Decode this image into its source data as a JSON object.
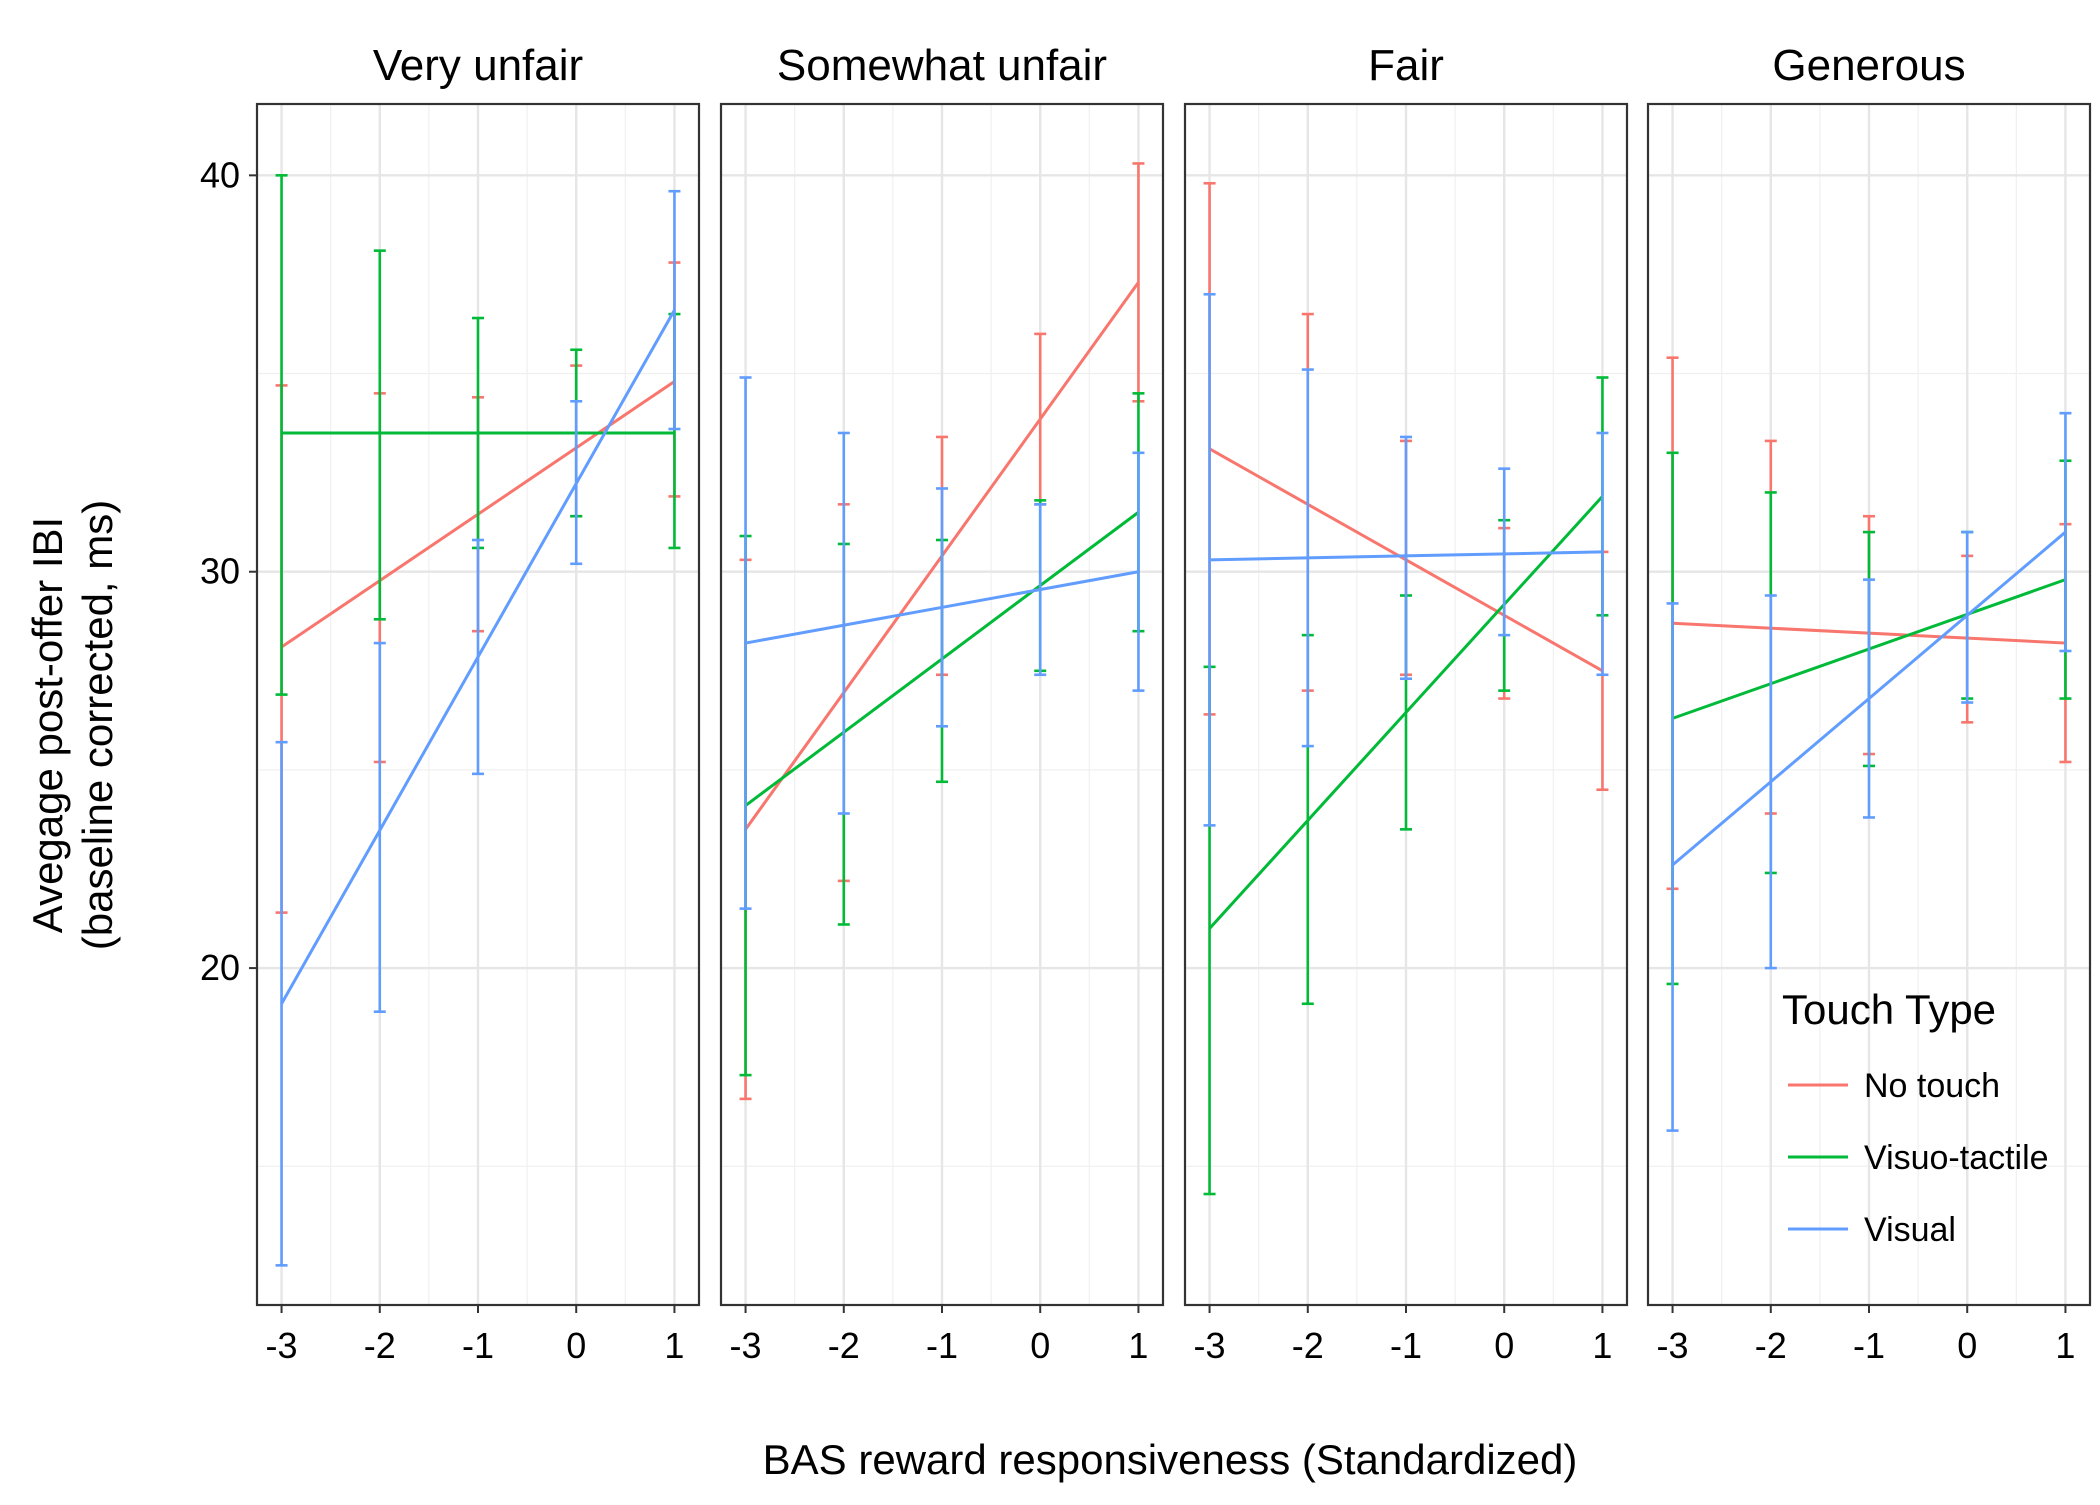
{
  "chart_data": {
    "type": "line",
    "xlabel": "BAS reward responsiveness (Standardized)",
    "ylabel_line1": "Avegage post-offer IBI",
    "ylabel_line2": "(baseline corrected, ms)",
    "x_ticks": [
      -3,
      -2,
      -1,
      0,
      1
    ],
    "x_tick_labels": [
      "-3",
      "-2",
      "-1",
      "0",
      "1"
    ],
    "y_ticks": [
      20,
      30,
      40
    ],
    "y_tick_labels": [
      "20",
      "30",
      "40"
    ],
    "xlim": [
      -3.25,
      1.25
    ],
    "ylim": [
      11.5,
      41.8
    ],
    "grid": true,
    "legend": {
      "title": "Touch Type",
      "placement": "bottom-right",
      "entries": [
        {
          "label": "No touch",
          "color": "#F8766D"
        },
        {
          "label": "Visuo-tactile",
          "color": "#00BA38"
        },
        {
          "label": "Visual",
          "color": "#619CFF"
        }
      ]
    },
    "facets": [
      {
        "label": "Very unfair",
        "series": [
          {
            "name": "No touch",
            "color": "#F8766D",
            "line": [
              [
                -3,
                28.1
              ],
              [
                1,
                34.8
              ]
            ],
            "errorbars": [
              [
                -3,
                21.4,
                34.7
              ],
              [
                -2,
                25.2,
                34.5
              ],
              [
                -1,
                28.5,
                34.4
              ],
              [
                0,
                31.4,
                35.2
              ],
              [
                1,
                31.9,
                37.8
              ]
            ]
          },
          {
            "name": "Visuo-tactile",
            "color": "#00BA38",
            "line": [
              [
                -3,
                33.5
              ],
              [
                1,
                33.5
              ]
            ],
            "errorbars": [
              [
                -3,
                26.9,
                40.0
              ],
              [
                -2,
                28.8,
                38.1
              ],
              [
                -1,
                30.6,
                36.4
              ],
              [
                0,
                31.4,
                35.6
              ],
              [
                1,
                30.6,
                36.5
              ]
            ]
          },
          {
            "name": "Visual",
            "color": "#619CFF",
            "line": [
              [
                -3,
                19.1
              ],
              [
                1,
                36.6
              ]
            ],
            "errorbars": [
              [
                -3,
                12.5,
                25.7
              ],
              [
                -2,
                18.9,
                28.2
              ],
              [
                -1,
                24.9,
                30.8
              ],
              [
                0,
                30.2,
                34.3
              ],
              [
                1,
                33.6,
                39.6
              ]
            ]
          }
        ]
      },
      {
        "label": "Somewhat unfair",
        "series": [
          {
            "name": "No touch",
            "color": "#F8766D",
            "line": [
              [
                -3,
                23.5
              ],
              [
                1,
                37.3
              ]
            ],
            "errorbars": [
              [
                -3,
                16.7,
                30.3
              ],
              [
                -2,
                22.2,
                31.7
              ],
              [
                -1,
                27.4,
                33.4
              ],
              [
                0,
                31.7,
                36.0
              ],
              [
                1,
                34.3,
                40.3
              ]
            ]
          },
          {
            "name": "Visuo-tactile",
            "color": "#00BA38",
            "line": [
              [
                -3,
                24.1
              ],
              [
                1,
                31.5
              ]
            ],
            "errorbars": [
              [
                -3,
                17.3,
                30.9
              ],
              [
                -2,
                21.1,
                30.7
              ],
              [
                -1,
                24.7,
                30.8
              ],
              [
                0,
                27.5,
                31.8
              ],
              [
                1,
                28.5,
                34.5
              ]
            ]
          },
          {
            "name": "Visual",
            "color": "#619CFF",
            "line": [
              [
                -3,
                28.2
              ],
              [
                1,
                30.0
              ]
            ],
            "errorbars": [
              [
                -3,
                21.5,
                34.9
              ],
              [
                -2,
                23.9,
                33.5
              ],
              [
                -1,
                26.1,
                32.1
              ],
              [
                0,
                27.4,
                31.7
              ],
              [
                1,
                27.0,
                33.0
              ]
            ]
          }
        ]
      },
      {
        "label": "Fair",
        "series": [
          {
            "name": "No touch",
            "color": "#F8766D",
            "line": [
              [
                -3,
                33.1
              ],
              [
                1,
                27.5
              ]
            ],
            "errorbars": [
              [
                -3,
                26.4,
                39.8
              ],
              [
                -2,
                27.0,
                36.5
              ],
              [
                -1,
                27.4,
                33.3
              ],
              [
                0,
                26.8,
                31.1
              ],
              [
                1,
                24.5,
                30.5
              ]
            ]
          },
          {
            "name": "Visuo-tactile",
            "color": "#00BA38",
            "line": [
              [
                -3,
                21.0
              ],
              [
                1,
                31.9
              ]
            ],
            "errorbars": [
              [
                -3,
                14.3,
                27.6
              ],
              [
                -2,
                19.1,
                28.4
              ],
              [
                -1,
                23.5,
                29.4
              ],
              [
                0,
                27.0,
                31.3
              ],
              [
                1,
                28.9,
                34.9
              ]
            ]
          },
          {
            "name": "Visual",
            "color": "#619CFF",
            "line": [
              [
                -3,
                30.3
              ],
              [
                1,
                30.5
              ]
            ],
            "errorbars": [
              [
                -3,
                23.6,
                37.0
              ],
              [
                -2,
                25.6,
                35.1
              ],
              [
                -1,
                27.3,
                33.4
              ],
              [
                0,
                28.4,
                32.6
              ],
              [
                1,
                27.4,
                33.5
              ]
            ]
          }
        ]
      },
      {
        "label": "Generous",
        "series": [
          {
            "name": "No touch",
            "color": "#F8766D",
            "line": [
              [
                -3,
                28.7
              ],
              [
                1,
                28.2
              ]
            ],
            "errorbars": [
              [
                -3,
                22.0,
                35.4
              ],
              [
                -2,
                23.9,
                33.3
              ],
              [
                -1,
                25.4,
                31.4
              ],
              [
                0,
                26.2,
                30.4
              ],
              [
                1,
                25.2,
                31.2
              ]
            ]
          },
          {
            "name": "Visuo-tactile",
            "color": "#00BA38",
            "line": [
              [
                -3,
                26.3
              ],
              [
                1,
                29.8
              ]
            ],
            "errorbars": [
              [
                -3,
                19.6,
                33.0
              ],
              [
                -2,
                22.4,
                32.0
              ],
              [
                -1,
                25.1,
                31.0
              ],
              [
                0,
                26.8,
                31.0
              ],
              [
                1,
                26.8,
                32.8
              ]
            ]
          },
          {
            "name": "Visual",
            "color": "#619CFF",
            "line": [
              [
                -3,
                22.6
              ],
              [
                1,
                31.0
              ]
            ],
            "errorbars": [
              [
                -3,
                15.9,
                29.2
              ],
              [
                -2,
                20.0,
                29.4
              ],
              [
                -1,
                23.8,
                29.8
              ],
              [
                0,
                26.7,
                31.0
              ],
              [
                1,
                28.0,
                34.0
              ]
            ]
          }
        ]
      }
    ]
  }
}
